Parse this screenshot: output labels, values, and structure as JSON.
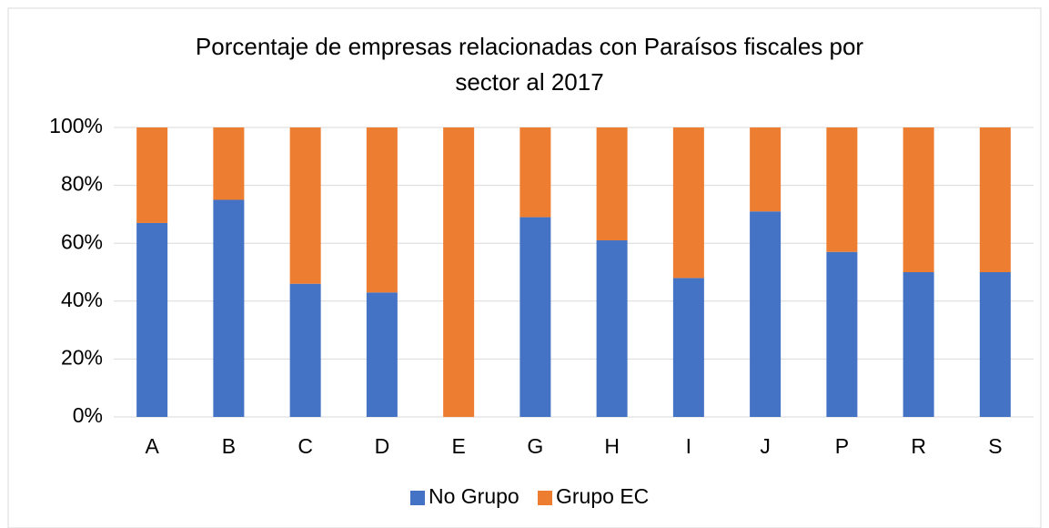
{
  "chart_data": {
    "type": "stacked_bar",
    "title": [
      "Porcentaje de empresas relacionadas con Paraísos fiscales por",
      "sector al 2017"
    ],
    "categories": [
      "A",
      "B",
      "C",
      "D",
      "E",
      "G",
      "H",
      "I",
      "J",
      "P",
      "R",
      "S"
    ],
    "series": [
      {
        "name": "No Grupo",
        "color": "#4472c4",
        "values": [
          67,
          75,
          46,
          43,
          0,
          69,
          61,
          48,
          71,
          57,
          50,
          50
        ]
      },
      {
        "name": "Grupo EC",
        "color": "#ed7d31",
        "values": [
          33,
          25,
          54,
          57,
          100,
          31,
          39,
          52,
          29,
          43,
          50,
          50
        ]
      }
    ],
    "ylim": [
      0,
      100
    ],
    "yticks": [
      {
        "value": 0,
        "label": "0%"
      },
      {
        "value": 20,
        "label": "20%"
      },
      {
        "value": 40,
        "label": "40%"
      },
      {
        "value": 60,
        "label": "60%"
      },
      {
        "value": 80,
        "label": "80%"
      },
      {
        "value": 100,
        "label": "100%"
      }
    ],
    "grid": true,
    "legend": "bottom"
  }
}
